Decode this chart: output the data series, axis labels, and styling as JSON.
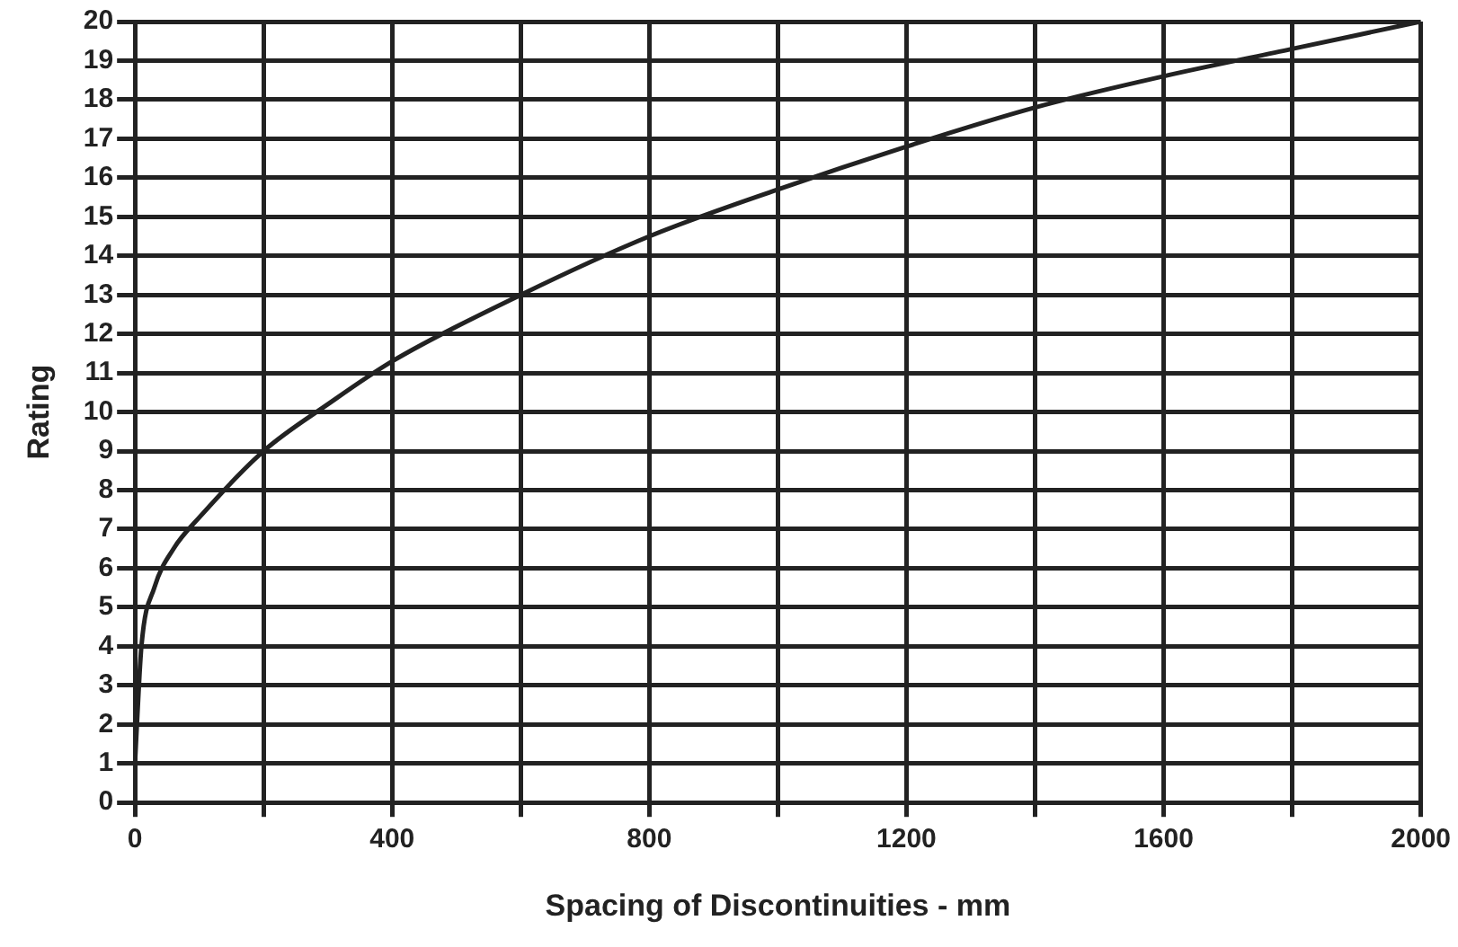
{
  "chart_data": {
    "type": "line",
    "xlabel": "Spacing of Discontinuities - mm",
    "ylabel": "Rating",
    "x": [
      0,
      3,
      10,
      30,
      60,
      100,
      200,
      300,
      400,
      600,
      800,
      1000,
      1200,
      1400,
      1600,
      1800,
      2000
    ],
    "series": [
      {
        "color": "#222222",
        "values": [
          1,
          2,
          4,
          5.5,
          6.5,
          7.3,
          9,
          10.2,
          11.3,
          13,
          14.5,
          15.7,
          16.8,
          17.8,
          18.6,
          19.3,
          20
        ]
      }
    ],
    "xlim": [
      0,
      2000
    ],
    "xticks": [
      0,
      {
        "value": 200,
        "label": null
      },
      400,
      {
        "value": 600,
        "label": null
      },
      800,
      {
        "value": 1000,
        "label": null
      },
      1200,
      {
        "value": 1400,
        "label": null
      },
      1600,
      {
        "value": 1800,
        "label": null
      },
      2000
    ],
    "ylim": [
      0,
      20
    ],
    "yticks": [
      0,
      1,
      2,
      3,
      4,
      5,
      6,
      7,
      8,
      9,
      10,
      11,
      12,
      13,
      14,
      15,
      16,
      17,
      18,
      19,
      20
    ],
    "grid": true,
    "legend": false,
    "marker": "none",
    "line_style": "solid"
  }
}
